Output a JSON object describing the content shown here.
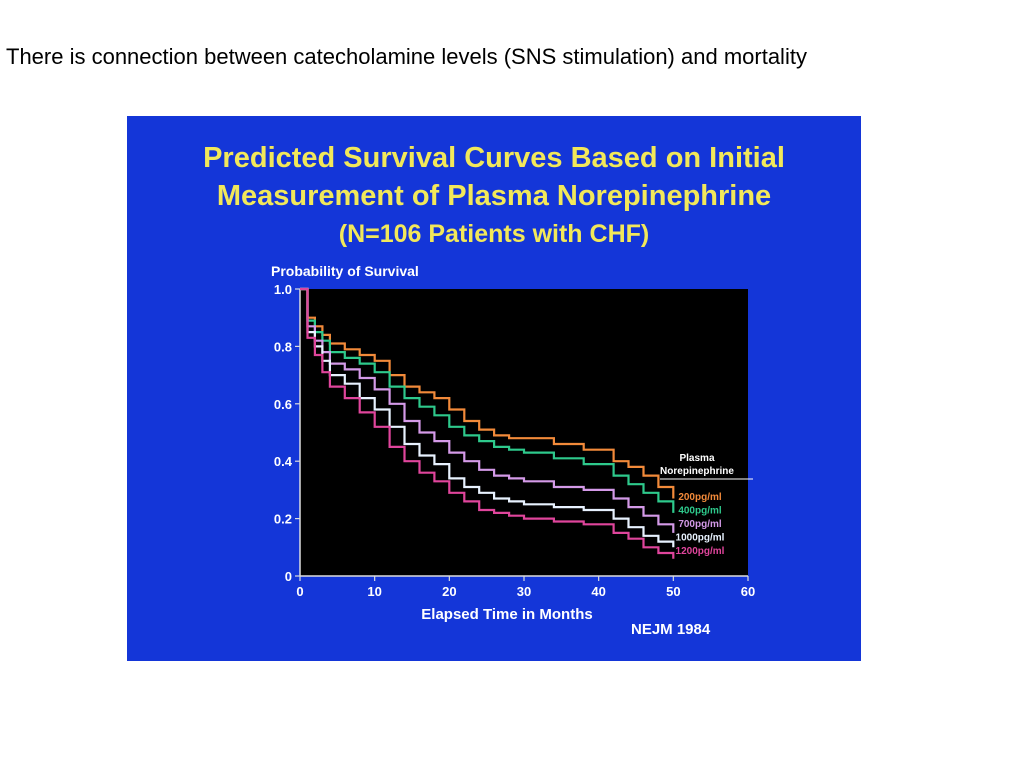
{
  "caption": "There is connection between catecholamine levels (SNS stimulation) and mortality",
  "colors": {
    "slide_bg": "#1436d8",
    "plot_bg": "#000000",
    "title": "#f2e85a",
    "axis_text": "#ffffff"
  },
  "chart_data": {
    "type": "line",
    "title_lines": [
      "Predicted Survival Curves Based on Initial",
      "Measurement of Plasma Norepinephrine",
      "(N=106 Patients with CHF)"
    ],
    "ylabel": "Probability of Survival",
    "xlabel": "Elapsed Time in Months",
    "source": "NEJM 1984",
    "xlim": [
      0,
      60
    ],
    "ylim": [
      0,
      1.0
    ],
    "xticks": [
      0,
      10,
      20,
      30,
      40,
      50,
      60
    ],
    "xtick_labels": [
      "0",
      "10",
      "20",
      "30",
      "40",
      "50",
      "60"
    ],
    "yticks": [
      0,
      0.2,
      0.4,
      0.6,
      0.8,
      1.0
    ],
    "ytick_labels": [
      "0",
      "0.2",
      "0.4",
      "0.6",
      "0.8",
      "1.0"
    ],
    "legend_title_lines": [
      "Plasma",
      "Norepinephrine"
    ],
    "legend_position": "right",
    "series": [
      {
        "name": "200pg/ml",
        "color": "#f28a3a",
        "x": [
          0,
          1,
          2,
          3,
          4,
          6,
          8,
          10,
          12,
          14,
          16,
          18,
          20,
          22,
          24,
          26,
          28,
          30,
          34,
          38,
          42,
          44,
          46,
          48,
          50
        ],
        "y": [
          1.0,
          0.9,
          0.87,
          0.84,
          0.81,
          0.79,
          0.77,
          0.75,
          0.7,
          0.66,
          0.64,
          0.62,
          0.58,
          0.54,
          0.51,
          0.49,
          0.48,
          0.48,
          0.46,
          0.44,
          0.4,
          0.38,
          0.35,
          0.31,
          0.27
        ]
      },
      {
        "name": "400pg/ml",
        "color": "#2ec98c",
        "x": [
          0,
          1,
          2,
          3,
          4,
          6,
          8,
          10,
          12,
          14,
          16,
          18,
          20,
          22,
          24,
          26,
          28,
          30,
          34,
          38,
          42,
          44,
          46,
          48,
          50
        ],
        "y": [
          1.0,
          0.89,
          0.85,
          0.82,
          0.78,
          0.76,
          0.74,
          0.71,
          0.66,
          0.62,
          0.59,
          0.56,
          0.52,
          0.49,
          0.47,
          0.45,
          0.44,
          0.43,
          0.41,
          0.39,
          0.35,
          0.32,
          0.29,
          0.26,
          0.22
        ]
      },
      {
        "name": "700pg/ml",
        "color": "#d49ae8",
        "x": [
          0,
          1,
          2,
          3,
          4,
          6,
          8,
          10,
          12,
          14,
          16,
          18,
          20,
          22,
          24,
          26,
          28,
          30,
          34,
          38,
          42,
          44,
          46,
          48,
          50
        ],
        "y": [
          1.0,
          0.87,
          0.82,
          0.78,
          0.74,
          0.72,
          0.69,
          0.65,
          0.6,
          0.54,
          0.5,
          0.47,
          0.43,
          0.4,
          0.37,
          0.35,
          0.34,
          0.33,
          0.31,
          0.3,
          0.27,
          0.24,
          0.21,
          0.18,
          0.15
        ]
      },
      {
        "name": "1000pg/ml",
        "color": "#e8f2ff",
        "x": [
          0,
          1,
          2,
          3,
          4,
          6,
          8,
          10,
          12,
          14,
          16,
          18,
          20,
          22,
          24,
          26,
          28,
          30,
          34,
          38,
          42,
          44,
          46,
          48,
          50
        ],
        "y": [
          1.0,
          0.85,
          0.8,
          0.75,
          0.7,
          0.67,
          0.62,
          0.58,
          0.52,
          0.46,
          0.42,
          0.39,
          0.34,
          0.31,
          0.29,
          0.27,
          0.26,
          0.25,
          0.24,
          0.23,
          0.2,
          0.17,
          0.14,
          0.12,
          0.1
        ]
      },
      {
        "name": "1200pg/ml",
        "color": "#e0459c",
        "x": [
          0,
          1,
          2,
          3,
          4,
          6,
          8,
          10,
          12,
          14,
          16,
          18,
          20,
          22,
          24,
          26,
          28,
          30,
          34,
          38,
          42,
          44,
          46,
          48,
          50
        ],
        "y": [
          1.0,
          0.83,
          0.77,
          0.71,
          0.66,
          0.62,
          0.57,
          0.52,
          0.45,
          0.4,
          0.36,
          0.33,
          0.29,
          0.26,
          0.23,
          0.22,
          0.21,
          0.2,
          0.19,
          0.18,
          0.15,
          0.13,
          0.1,
          0.08,
          0.06
        ]
      }
    ]
  }
}
